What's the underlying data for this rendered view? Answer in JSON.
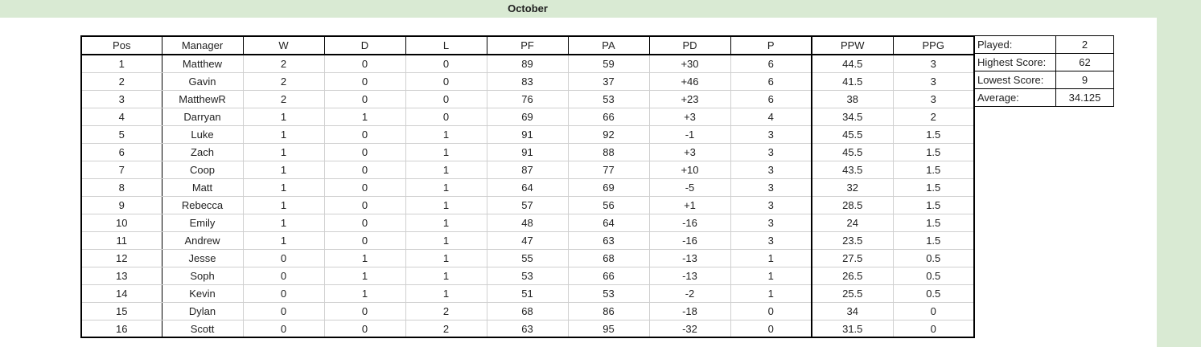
{
  "title": "October",
  "columns": [
    "Pos",
    "Manager",
    "W",
    "D",
    "L",
    "PF",
    "PA",
    "PD",
    "P",
    "PPW",
    "PPG"
  ],
  "rows": [
    [
      "1",
      "Matthew",
      "2",
      "0",
      "0",
      "89",
      "59",
      "+30",
      "6",
      "44.5",
      "3"
    ],
    [
      "2",
      "Gavin",
      "2",
      "0",
      "0",
      "83",
      "37",
      "+46",
      "6",
      "41.5",
      "3"
    ],
    [
      "3",
      "MatthewR",
      "2",
      "0",
      "0",
      "76",
      "53",
      "+23",
      "6",
      "38",
      "3"
    ],
    [
      "4",
      "Darryan",
      "1",
      "1",
      "0",
      "69",
      "66",
      "+3",
      "4",
      "34.5",
      "2"
    ],
    [
      "5",
      "Luke",
      "1",
      "0",
      "1",
      "91",
      "92",
      "-1",
      "3",
      "45.5",
      "1.5"
    ],
    [
      "6",
      "Zach",
      "1",
      "0",
      "1",
      "91",
      "88",
      "+3",
      "3",
      "45.5",
      "1.5"
    ],
    [
      "7",
      "Coop",
      "1",
      "0",
      "1",
      "87",
      "77",
      "+10",
      "3",
      "43.5",
      "1.5"
    ],
    [
      "8",
      "Matt",
      "1",
      "0",
      "1",
      "64",
      "69",
      "-5",
      "3",
      "32",
      "1.5"
    ],
    [
      "9",
      "Rebecca",
      "1",
      "0",
      "1",
      "57",
      "56",
      "+1",
      "3",
      "28.5",
      "1.5"
    ],
    [
      "10",
      "Emily",
      "1",
      "0",
      "1",
      "48",
      "64",
      "-16",
      "3",
      "24",
      "1.5"
    ],
    [
      "11",
      "Andrew",
      "1",
      "0",
      "1",
      "47",
      "63",
      "-16",
      "3",
      "23.5",
      "1.5"
    ],
    [
      "12",
      "Jesse",
      "0",
      "1",
      "1",
      "55",
      "68",
      "-13",
      "1",
      "27.5",
      "0.5"
    ],
    [
      "13",
      "Soph",
      "0",
      "1",
      "1",
      "53",
      "66",
      "-13",
      "1",
      "26.5",
      "0.5"
    ],
    [
      "14",
      "Kevin",
      "0",
      "1",
      "1",
      "51",
      "53",
      "-2",
      "1",
      "25.5",
      "0.5"
    ],
    [
      "15",
      "Dylan",
      "0",
      "0",
      "2",
      "68",
      "86",
      "-18",
      "0",
      "34",
      "0"
    ],
    [
      "16",
      "Scott",
      "0",
      "0",
      "2",
      "63",
      "95",
      "-32",
      "0",
      "31.5",
      "0"
    ]
  ],
  "stats": [
    {
      "label": "Played:",
      "value": "2"
    },
    {
      "label": "Highest Score:",
      "value": "62"
    },
    {
      "label": "Lowest Score:",
      "value": "9"
    },
    {
      "label": "Average:",
      "value": "34.125"
    }
  ],
  "colors": {
    "header_band": "#d9ead3"
  }
}
